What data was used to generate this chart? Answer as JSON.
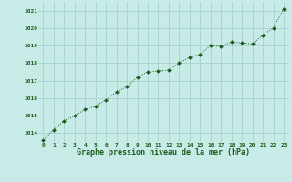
{
  "x": [
    0,
    1,
    2,
    3,
    4,
    5,
    6,
    7,
    8,
    9,
    10,
    11,
    12,
    13,
    14,
    15,
    16,
    17,
    18,
    19,
    20,
    21,
    22,
    23
  ],
  "y": [
    1013.6,
    1014.2,
    1014.7,
    1015.0,
    1015.35,
    1015.55,
    1015.9,
    1016.35,
    1016.65,
    1017.2,
    1017.5,
    1017.55,
    1017.6,
    1018.0,
    1018.35,
    1018.5,
    1019.0,
    1018.95,
    1019.2,
    1019.15,
    1019.1,
    1019.6,
    1020.0,
    1021.1
  ],
  "line_color": "#1a5c1a",
  "marker_color": "#1a5c1a",
  "background_color": "#c8ebe8",
  "grid_color": "#9ecfc8",
  "xlabel": "Graphe pression niveau de la mer (hPa)",
  "xlabel_color": "#1a5c1a",
  "tick_color": "#1a5c1a",
  "ylim_min": 1013.5,
  "ylim_max": 1021.5,
  "yticks": [
    1014,
    1015,
    1016,
    1017,
    1018,
    1019,
    1020,
    1021
  ],
  "xticks": [
    0,
    1,
    2,
    3,
    4,
    5,
    6,
    7,
    8,
    9,
    10,
    11,
    12,
    13,
    14,
    15,
    16,
    17,
    18,
    19,
    20,
    21,
    22,
    23
  ]
}
